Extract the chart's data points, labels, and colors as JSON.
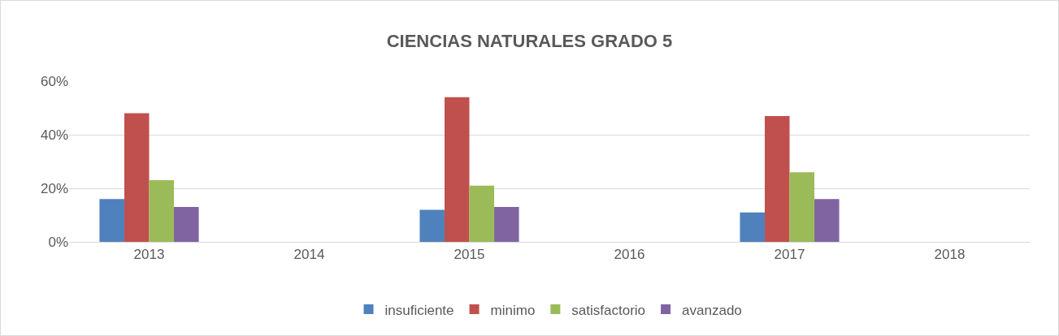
{
  "chart_data": {
    "type": "bar",
    "title": "CIENCIAS NATURALES GRADO 5",
    "categories": [
      "2013",
      "2014",
      "2015",
      "2016",
      "2017",
      "2018"
    ],
    "series": [
      {
        "name": "insuficiente",
        "color": "#4f81bd",
        "values": [
          16,
          null,
          12,
          null,
          11,
          null
        ]
      },
      {
        "name": "minimo",
        "color": "#c0504d",
        "values": [
          48,
          null,
          54,
          null,
          47,
          null
        ]
      },
      {
        "name": "satisfactorio",
        "color": "#9bbb59",
        "values": [
          23,
          null,
          21,
          null,
          26,
          null
        ]
      },
      {
        "name": "avanzado",
        "color": "#8064a2",
        "values": [
          13,
          null,
          13,
          null,
          16,
          null
        ]
      }
    ],
    "ylim": [
      0,
      60
    ],
    "yticks": [
      {
        "value": 0,
        "label": "0%"
      },
      {
        "value": 20,
        "label": "20%"
      },
      {
        "value": 40,
        "label": "40%"
      },
      {
        "value": 60,
        "label": "60%"
      }
    ],
    "grid": "y",
    "legend": "bottom"
  }
}
